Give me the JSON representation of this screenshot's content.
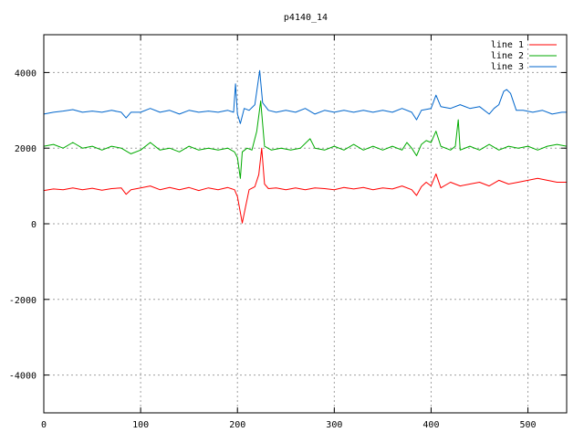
{
  "chart_data": {
    "type": "line",
    "title": "p4140_14",
    "xlabel": "",
    "ylabel": "",
    "xlim": [
      0,
      540
    ],
    "ylim": [
      -5000,
      5000
    ],
    "xticks": [
      0,
      100,
      200,
      300,
      400,
      500
    ],
    "yticks": [
      -4000,
      -2000,
      0,
      2000,
      4000
    ],
    "grid": true,
    "legend_position": "top-right",
    "series": [
      {
        "name": "line 1",
        "color": "#ff0000",
        "points": [
          [
            0,
            880
          ],
          [
            10,
            920
          ],
          [
            20,
            900
          ],
          [
            30,
            950
          ],
          [
            40,
            900
          ],
          [
            50,
            940
          ],
          [
            60,
            890
          ],
          [
            70,
            930
          ],
          [
            80,
            950
          ],
          [
            85,
            780
          ],
          [
            90,
            900
          ],
          [
            100,
            950
          ],
          [
            110,
            1000
          ],
          [
            120,
            900
          ],
          [
            130,
            960
          ],
          [
            140,
            900
          ],
          [
            150,
            960
          ],
          [
            160,
            880
          ],
          [
            170,
            950
          ],
          [
            180,
            900
          ],
          [
            190,
            960
          ],
          [
            197,
            900
          ],
          [
            200,
            720
          ],
          [
            203,
            300
          ],
          [
            205,
            20
          ],
          [
            208,
            400
          ],
          [
            212,
            900
          ],
          [
            218,
            980
          ],
          [
            222,
            1300
          ],
          [
            225,
            2000
          ],
          [
            228,
            1050
          ],
          [
            232,
            930
          ],
          [
            240,
            950
          ],
          [
            250,
            900
          ],
          [
            260,
            950
          ],
          [
            270,
            900
          ],
          [
            280,
            950
          ],
          [
            290,
            930
          ],
          [
            300,
            900
          ],
          [
            310,
            960
          ],
          [
            320,
            920
          ],
          [
            330,
            960
          ],
          [
            340,
            900
          ],
          [
            350,
            950
          ],
          [
            360,
            920
          ],
          [
            370,
            1000
          ],
          [
            380,
            900
          ],
          [
            385,
            750
          ],
          [
            390,
            980
          ],
          [
            395,
            1100
          ],
          [
            400,
            1000
          ],
          [
            405,
            1320
          ],
          [
            410,
            950
          ],
          [
            420,
            1100
          ],
          [
            430,
            1000
          ],
          [
            440,
            1050
          ],
          [
            450,
            1100
          ],
          [
            460,
            1000
          ],
          [
            470,
            1150
          ],
          [
            480,
            1050
          ],
          [
            490,
            1100
          ],
          [
            500,
            1150
          ],
          [
            510,
            1200
          ],
          [
            520,
            1150
          ],
          [
            530,
            1100
          ],
          [
            540,
            1100
          ]
        ]
      },
      {
        "name": "line 2",
        "color": "#00aa00",
        "points": [
          [
            0,
            2050
          ],
          [
            10,
            2100
          ],
          [
            20,
            2000
          ],
          [
            30,
            2150
          ],
          [
            40,
            2000
          ],
          [
            50,
            2050
          ],
          [
            60,
            1950
          ],
          [
            70,
            2050
          ],
          [
            80,
            2000
          ],
          [
            90,
            1850
          ],
          [
            100,
            1950
          ],
          [
            110,
            2150
          ],
          [
            120,
            1950
          ],
          [
            130,
            2000
          ],
          [
            140,
            1900
          ],
          [
            150,
            2050
          ],
          [
            160,
            1950
          ],
          [
            170,
            2000
          ],
          [
            180,
            1950
          ],
          [
            190,
            2000
          ],
          [
            197,
            1900
          ],
          [
            200,
            1750
          ],
          [
            203,
            1200
          ],
          [
            205,
            1900
          ],
          [
            210,
            2000
          ],
          [
            215,
            1950
          ],
          [
            220,
            2450
          ],
          [
            224,
            3250
          ],
          [
            228,
            2050
          ],
          [
            235,
            1950
          ],
          [
            245,
            2000
          ],
          [
            255,
            1950
          ],
          [
            265,
            2000
          ],
          [
            275,
            2250
          ],
          [
            280,
            2000
          ],
          [
            290,
            1950
          ],
          [
            300,
            2050
          ],
          [
            310,
            1950
          ],
          [
            320,
            2100
          ],
          [
            330,
            1950
          ],
          [
            340,
            2050
          ],
          [
            350,
            1950
          ],
          [
            360,
            2050
          ],
          [
            370,
            1950
          ],
          [
            375,
            2150
          ],
          [
            380,
            2000
          ],
          [
            385,
            1800
          ],
          [
            390,
            2100
          ],
          [
            395,
            2200
          ],
          [
            400,
            2150
          ],
          [
            405,
            2450
          ],
          [
            410,
            2050
          ],
          [
            420,
            1950
          ],
          [
            425,
            2050
          ],
          [
            428,
            2750
          ],
          [
            430,
            1950
          ],
          [
            440,
            2050
          ],
          [
            450,
            1950
          ],
          [
            460,
            2100
          ],
          [
            470,
            1950
          ],
          [
            480,
            2050
          ],
          [
            490,
            2000
          ],
          [
            500,
            2050
          ],
          [
            510,
            1950
          ],
          [
            520,
            2050
          ],
          [
            530,
            2100
          ],
          [
            540,
            2050
          ]
        ]
      },
      {
        "name": "line 3",
        "color": "#0066cc",
        "points": [
          [
            0,
            2900
          ],
          [
            10,
            2950
          ],
          [
            20,
            2980
          ],
          [
            30,
            3020
          ],
          [
            40,
            2950
          ],
          [
            50,
            2980
          ],
          [
            60,
            2950
          ],
          [
            70,
            3000
          ],
          [
            80,
            2950
          ],
          [
            85,
            2800
          ],
          [
            90,
            2950
          ],
          [
            100,
            2950
          ],
          [
            110,
            3050
          ],
          [
            120,
            2950
          ],
          [
            130,
            3000
          ],
          [
            140,
            2900
          ],
          [
            150,
            3000
          ],
          [
            160,
            2950
          ],
          [
            170,
            2980
          ],
          [
            180,
            2950
          ],
          [
            190,
            3000
          ],
          [
            196,
            2950
          ],
          [
            198,
            3700
          ],
          [
            200,
            2900
          ],
          [
            203,
            2650
          ],
          [
            207,
            3050
          ],
          [
            212,
            3000
          ],
          [
            218,
            3150
          ],
          [
            223,
            4050
          ],
          [
            226,
            3200
          ],
          [
            232,
            3000
          ],
          [
            240,
            2950
          ],
          [
            250,
            3000
          ],
          [
            260,
            2950
          ],
          [
            270,
            3050
          ],
          [
            280,
            2900
          ],
          [
            290,
            3000
          ],
          [
            300,
            2950
          ],
          [
            310,
            3000
          ],
          [
            320,
            2950
          ],
          [
            330,
            3000
          ],
          [
            340,
            2950
          ],
          [
            350,
            3000
          ],
          [
            360,
            2950
          ],
          [
            370,
            3050
          ],
          [
            380,
            2950
          ],
          [
            385,
            2750
          ],
          [
            390,
            3000
          ],
          [
            400,
            3050
          ],
          [
            405,
            3400
          ],
          [
            410,
            3100
          ],
          [
            420,
            3050
          ],
          [
            430,
            3150
          ],
          [
            440,
            3050
          ],
          [
            450,
            3100
          ],
          [
            460,
            2900
          ],
          [
            465,
            3050
          ],
          [
            470,
            3150
          ],
          [
            475,
            3500
          ],
          [
            478,
            3550
          ],
          [
            482,
            3450
          ],
          [
            488,
            3000
          ],
          [
            495,
            3000
          ],
          [
            505,
            2950
          ],
          [
            515,
            3000
          ],
          [
            525,
            2900
          ],
          [
            535,
            2950
          ],
          [
            540,
            2950
          ]
        ]
      }
    ]
  }
}
